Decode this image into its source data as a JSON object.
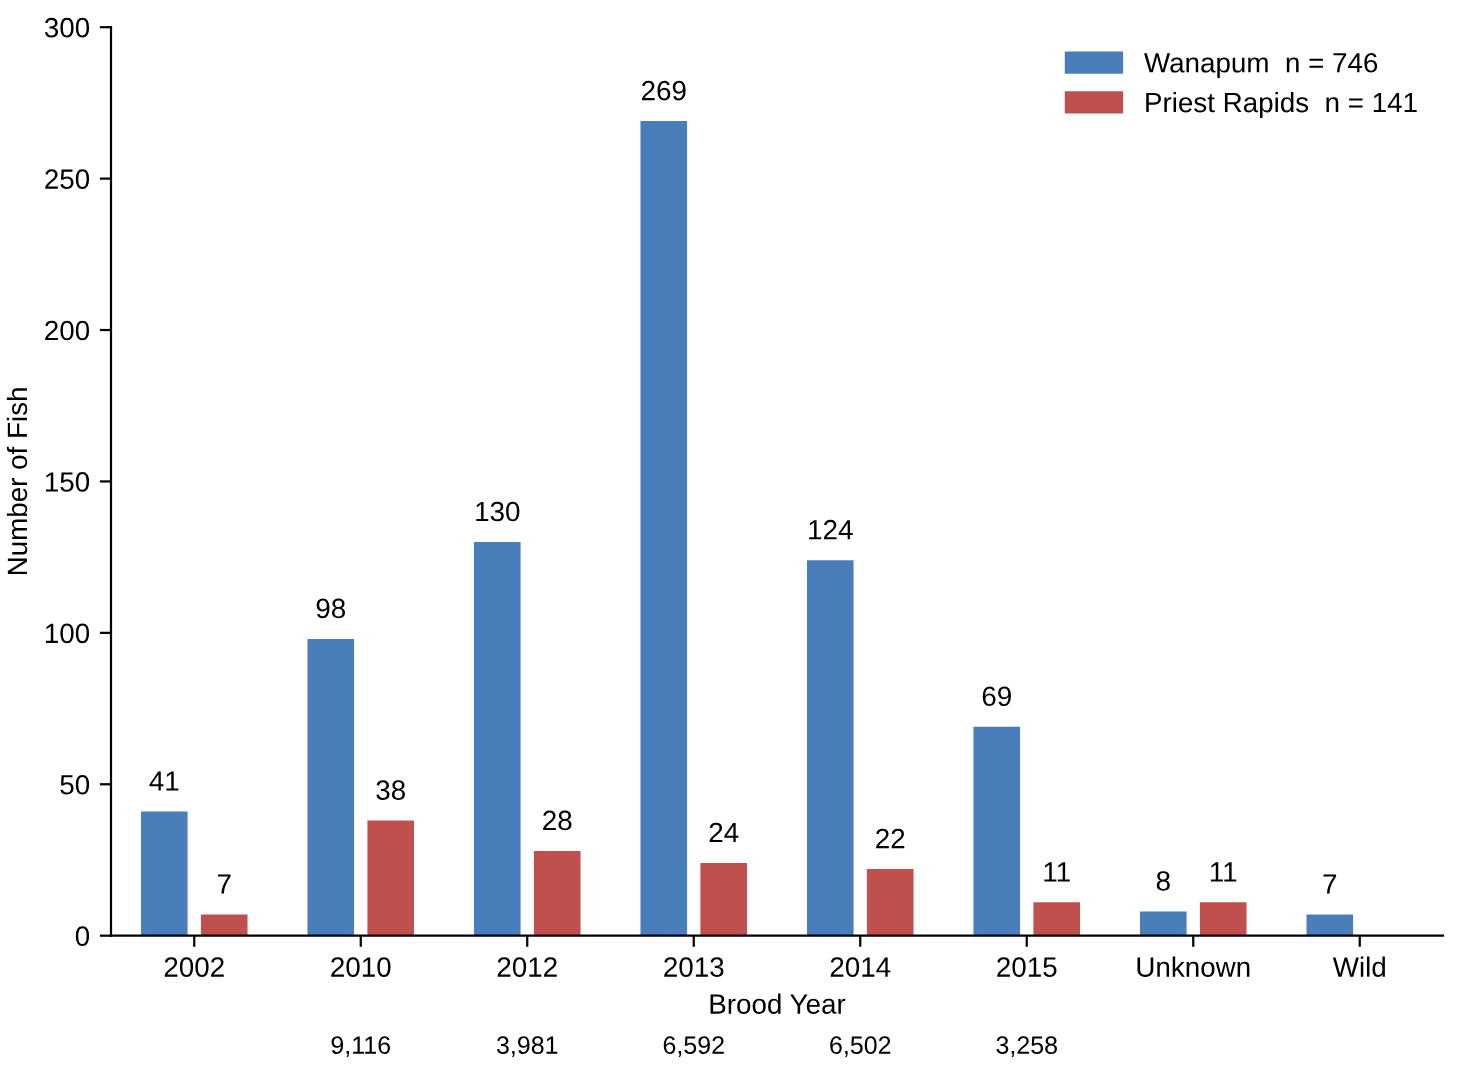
{
  "chart_data": {
    "type": "bar",
    "xlabel": "Brood Year",
    "ylabel": "Number of Fish",
    "categories": [
      "2002",
      "2010",
      "2012",
      "2013",
      "2014",
      "2015",
      "Unknown",
      "Wild"
    ],
    "series": [
      {
        "name": "Wanapum  n = 746",
        "color": "#4a7ebb",
        "values": [
          41,
          98,
          130,
          269,
          124,
          69,
          8,
          7
        ]
      },
      {
        "name": "Priest Rapids  n = 141",
        "color": "#c0504d",
        "values": [
          7,
          38,
          28,
          24,
          22,
          11,
          11,
          null
        ]
      }
    ],
    "ylim": [
      0,
      300
    ],
    "yticks": [
      0,
      50,
      100,
      150,
      200,
      250,
      300
    ],
    "grid": false,
    "legend": "top right",
    "data_labels": true,
    "annotations": [
      "9,116",
      "3,981",
      "6,592",
      "6,502",
      "3,258"
    ]
  }
}
